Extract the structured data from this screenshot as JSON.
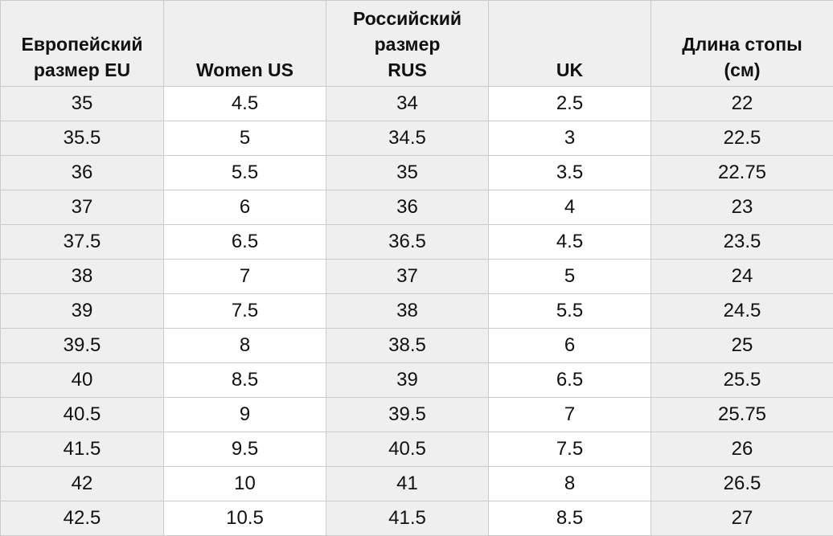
{
  "table": {
    "headers": [
      "Европейский\nразмер EU",
      "Women US",
      "Российский\nразмер\nRUS",
      "UK",
      "Длина стопы\n(см)"
    ],
    "rows": [
      [
        "35",
        "4.5",
        "34",
        "2.5",
        "22"
      ],
      [
        "35.5",
        "5",
        "34.5",
        "3",
        "22.5"
      ],
      [
        "36",
        "5.5",
        "35",
        "3.5",
        "22.75"
      ],
      [
        "37",
        "6",
        "36",
        "4",
        "23"
      ],
      [
        "37.5",
        "6.5",
        "36.5",
        "4.5",
        "23.5"
      ],
      [
        "38",
        "7",
        "37",
        "5",
        "24"
      ],
      [
        "39",
        "7.5",
        "38",
        "5.5",
        "24.5"
      ],
      [
        "39.5",
        "8",
        "38.5",
        "6",
        "25"
      ],
      [
        "40",
        "8.5",
        "39",
        "6.5",
        "25.5"
      ],
      [
        "40.5",
        "9",
        "39.5",
        "7",
        "25.75"
      ],
      [
        "41.5",
        "9.5",
        "40.5",
        "7.5",
        "26"
      ],
      [
        "42",
        "10",
        "41",
        "8",
        "26.5"
      ],
      [
        "42.5",
        "10.5",
        "41.5",
        "8.5",
        "27"
      ]
    ],
    "colors": {
      "shaded_background": "#efefef",
      "plain_background": "#ffffff",
      "border": "#cccccc",
      "text": "#111111"
    }
  }
}
